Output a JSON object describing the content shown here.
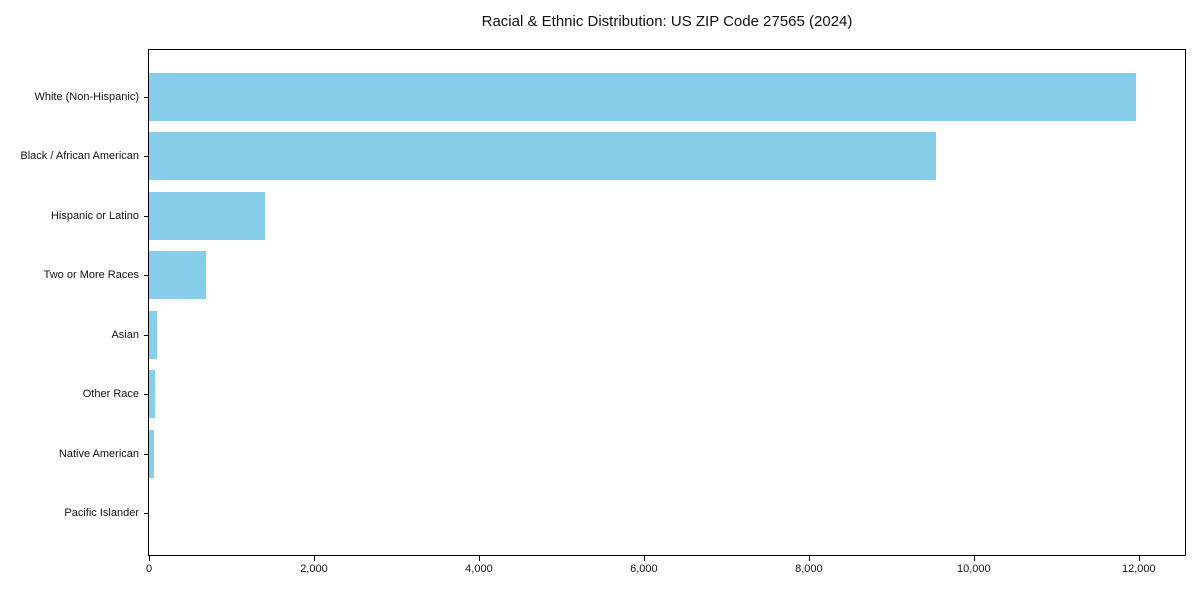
{
  "chart_data": {
    "type": "bar",
    "orientation": "horizontal",
    "title": "Racial & Ethnic Distribution: US ZIP Code 27565 (2024)",
    "xlabel": "",
    "ylabel": "",
    "categories": [
      "White (Non-Hispanic)",
      "Black / African American",
      "Hispanic or Latino",
      "Two or More Races",
      "Asian",
      "Other Race",
      "Native American",
      "Pacific Islander"
    ],
    "values": [
      11960,
      9540,
      1410,
      690,
      95,
      78,
      60,
      0
    ],
    "xlim": [
      0,
      12560
    ],
    "x_ticks": [
      0,
      2000,
      4000,
      6000,
      8000,
      10000,
      12000
    ],
    "x_tick_labels": [
      "0",
      "2,000",
      "4,000",
      "6,000",
      "8,000",
      "10,000",
      "12,000"
    ],
    "grid": false,
    "legend": null,
    "bar_color": "#87CEEB",
    "axis_color": "#000000",
    "background_color": "#FFFFFF"
  }
}
